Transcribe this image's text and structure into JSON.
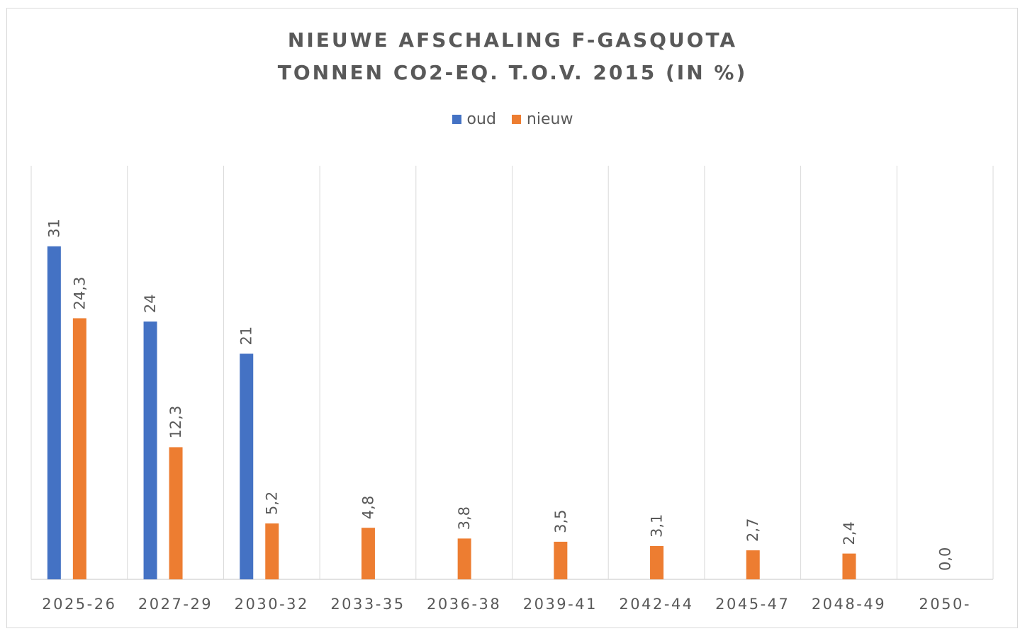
{
  "chart_data": {
    "type": "bar",
    "title_line1": "NIEUWE AFSCHALING F-GASQUOTA",
    "title_line2": "TONNEN CO2-EQ. T.O.V. 2015 (IN %)",
    "categories": [
      "2025-26",
      "2027-29",
      "2030-32",
      "2033-35",
      "2036-38",
      "2039-41",
      "2042-44",
      "2045-47",
      "2048-49",
      "2050-"
    ],
    "series": [
      {
        "name": "oud",
        "color": "#4472c4",
        "values": [
          31,
          24,
          21,
          null,
          null,
          null,
          null,
          null,
          null,
          null
        ],
        "labels": [
          "31",
          "24",
          "21",
          "",
          "",
          "",
          "",
          "",
          "",
          ""
        ]
      },
      {
        "name": "nieuw",
        "color": "#ed7d31",
        "values": [
          24.3,
          12.3,
          5.2,
          4.8,
          3.8,
          3.5,
          3.1,
          2.7,
          2.4,
          0.0
        ],
        "labels": [
          "24,3",
          "12,3",
          "5,2",
          "4,8",
          "3,8",
          "3,5",
          "3,1",
          "2,7",
          "2,4",
          "0,0"
        ]
      }
    ],
    "ylim": [
      0,
      35
    ],
    "legend_position": "top",
    "gridlines": "vertical"
  }
}
